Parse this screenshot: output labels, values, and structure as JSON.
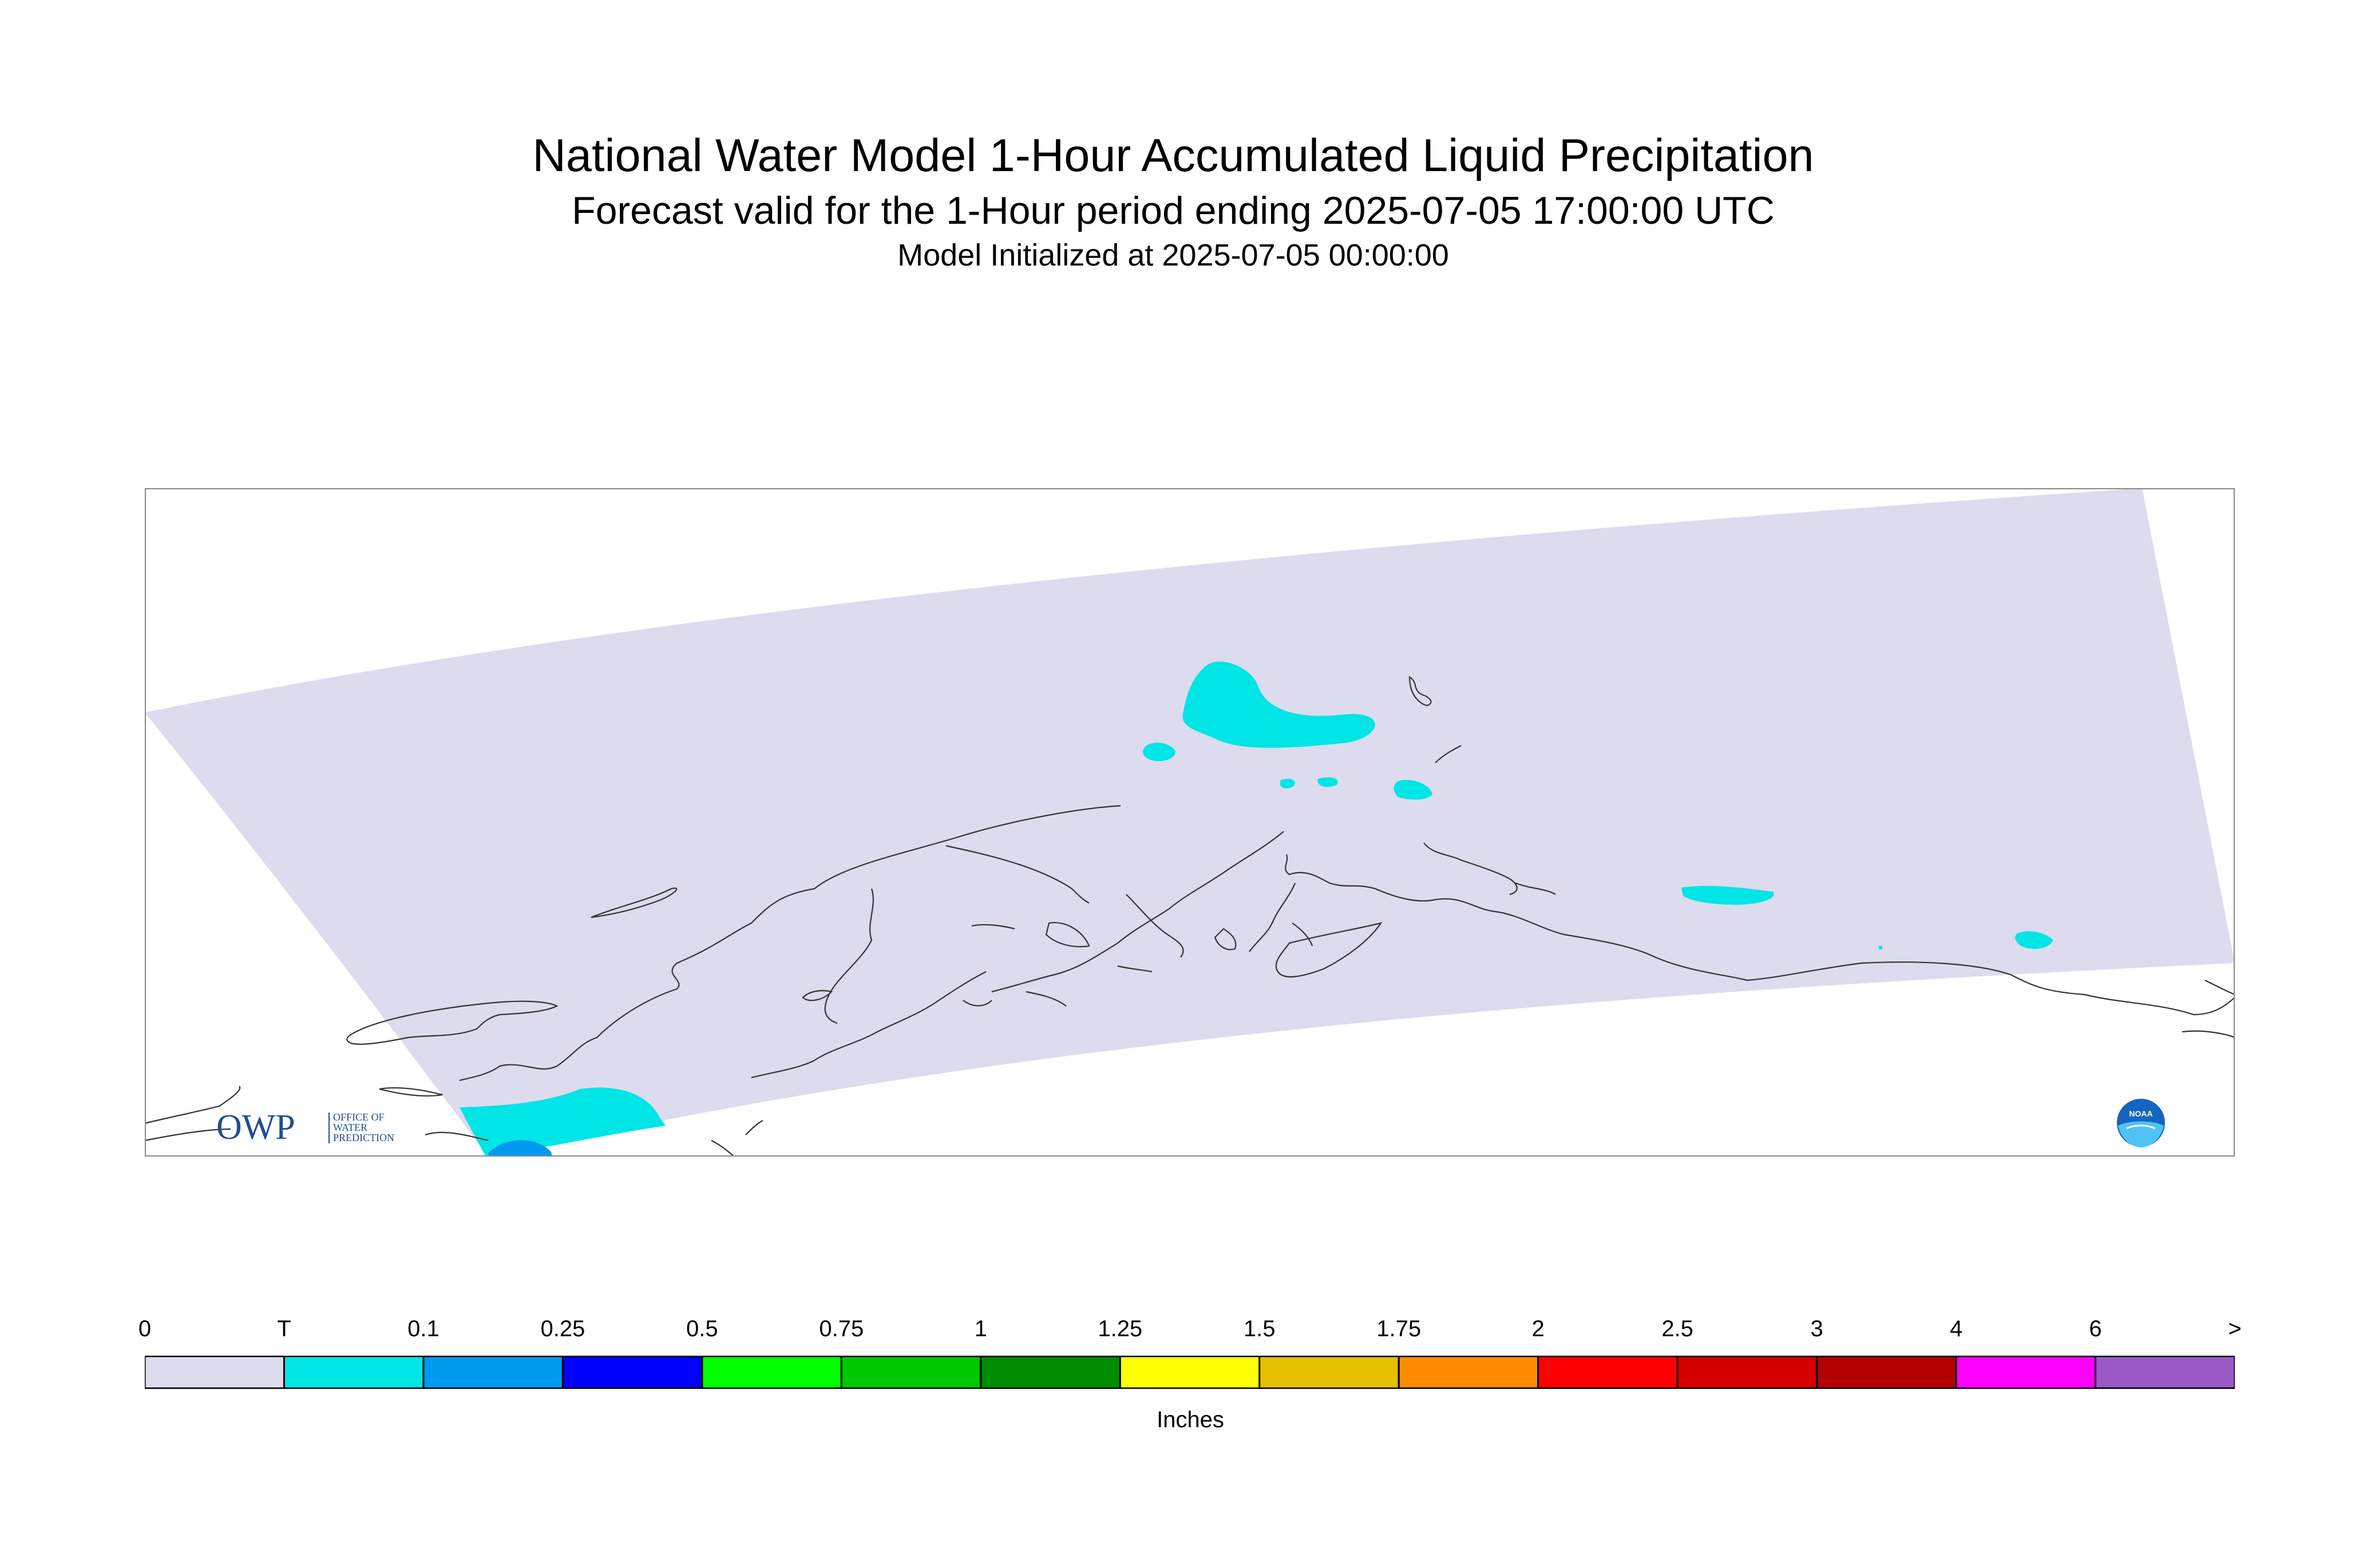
{
  "header": {
    "title": "National Water Model 1-Hour Accumulated Liquid Precipitation",
    "subtitle": "Forecast valid for the 1-Hour period ending 2025-07-05 17:00:00 UTC",
    "init_line": "Model Initialized at 2025-07-05 00:00:00"
  },
  "map": {
    "region_visible": "Alaska",
    "domain_fill_color": "#dcdcee",
    "coastline_color": "#333333",
    "frame_color": "#888888",
    "precip_areas": [
      {
        "category": "T",
        "color": "#00e5e5"
      },
      {
        "category": "0.1",
        "color": "#0099f0"
      }
    ]
  },
  "logos": {
    "owp": {
      "mark_text": "OWP",
      "line1": "OFFICE OF",
      "line2": "WATER",
      "line3": "PREDICTION",
      "color": "#1f4e8c"
    },
    "noaa": {
      "text": "NOAA",
      "color": "#1565c0"
    }
  },
  "legend": {
    "units_label": "Inches",
    "tick_labels": [
      "0",
      "T",
      "0.1",
      "0.25",
      "0.5",
      "0.75",
      "1",
      "1.25",
      "1.5",
      "1.75",
      "2",
      "2.5",
      "3",
      "4",
      "6",
      ">"
    ],
    "colors": [
      "#dcdcee",
      "#00e5e5",
      "#0099f0",
      "#0000ff",
      "#00ff00",
      "#00c800",
      "#008c00",
      "#ffff00",
      "#e6c000",
      "#ff8c00",
      "#ff0000",
      "#d70000",
      "#b40000",
      "#ff00ff",
      "#9b59c8"
    ]
  }
}
